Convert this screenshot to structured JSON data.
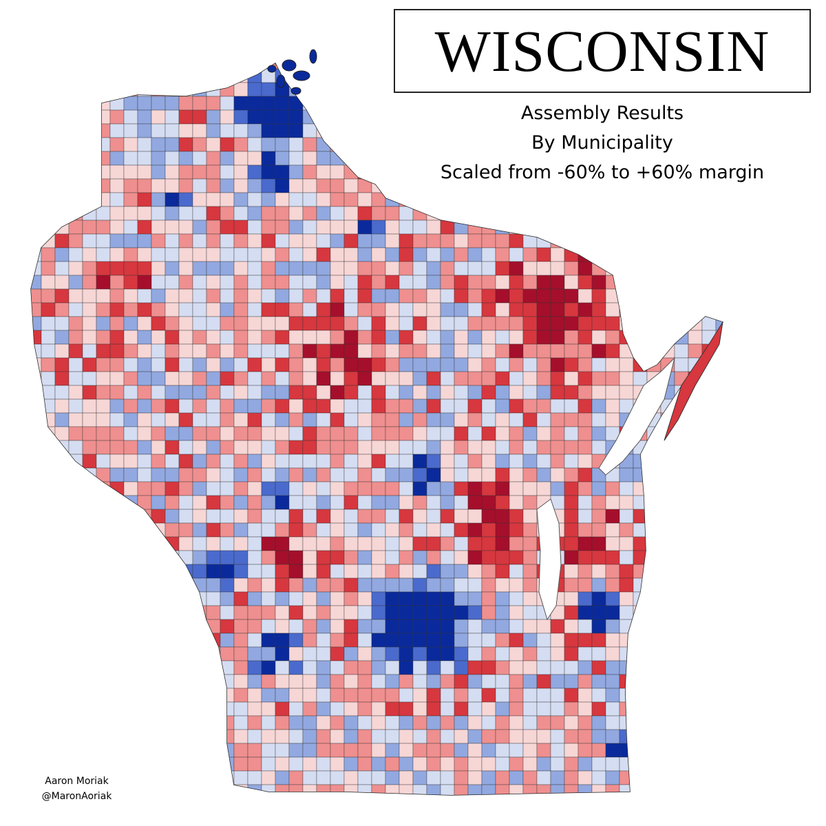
{
  "header": {
    "title": "WISCONSIN",
    "subtitle_lines": [
      "Assembly Results",
      "By Municipality",
      "Scaled from -60% to +60% margin"
    ]
  },
  "credit": {
    "author": "Aaron Moriak",
    "handle": "@MaronAoriak"
  },
  "map": {
    "region": "Wisconsin",
    "colors": {
      "strong_red": "#a50f2b",
      "red": "#d7373e",
      "light_red": "#ef8f8f",
      "pale_red": "#f7d6d6",
      "pale_blue": "#d5ddf2",
      "light_blue": "#92a8e0",
      "blue": "#4a6acd",
      "strong_blue": "#0a2a9c",
      "border": "#333333",
      "background": "#ffffff"
    }
  }
}
